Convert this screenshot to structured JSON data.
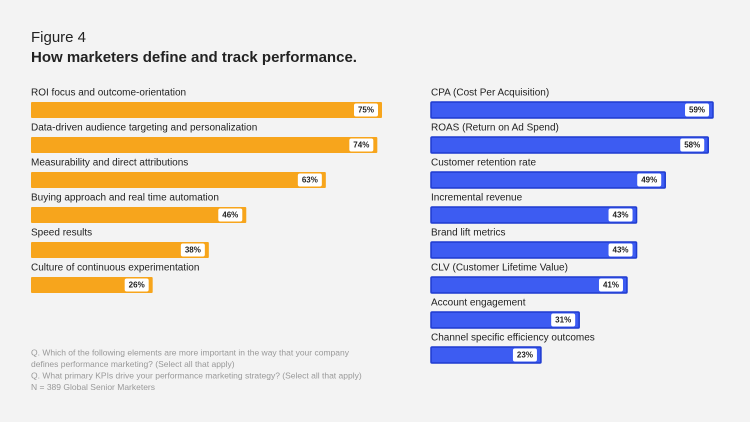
{
  "figure_label": "Figure 4",
  "title": "How marketers define and track performance.",
  "notes": [
    "Q. Which of the following elements are more important in the way that your company",
    "defines performance marketing? (Select all that apply)",
    "Q. What primary KPIs drive your performance marketing strategy? (Select all that apply)",
    "N = 389 Global Senior Marketers"
  ],
  "chart_data": [
    {
      "type": "bar",
      "orientation": "horizontal",
      "color": "#f7a51c",
      "categories": [
        "ROI focus and outcome-orientation",
        "Data-driven audience targeting and personalization",
        "Measurability and direct attributions",
        "Buying approach and real time automation",
        "Speed results",
        "Culture of continuous experimentation"
      ],
      "values": [
        75,
        74,
        63,
        46,
        38,
        26
      ],
      "value_labels": [
        "75%",
        "74%",
        "63%",
        "46%",
        "38%",
        "26%"
      ]
    },
    {
      "type": "bar",
      "orientation": "horizontal",
      "color": "#3d5cf2",
      "categories": [
        "CPA (Cost Per Acquisition)",
        "ROAS (Return on Ad Spend)",
        "Customer retention rate",
        "Incremental revenue",
        "Brand lift metrics",
        "CLV (Customer Lifetime Value)",
        "Account engagement",
        "Channel specific efficiency outcomes"
      ],
      "values": [
        59,
        58,
        49,
        43,
        43,
        41,
        31,
        23
      ],
      "value_labels": [
        "59%",
        "58%",
        "49%",
        "43%",
        "43%",
        "41%",
        "31%",
        "23%"
      ]
    }
  ]
}
